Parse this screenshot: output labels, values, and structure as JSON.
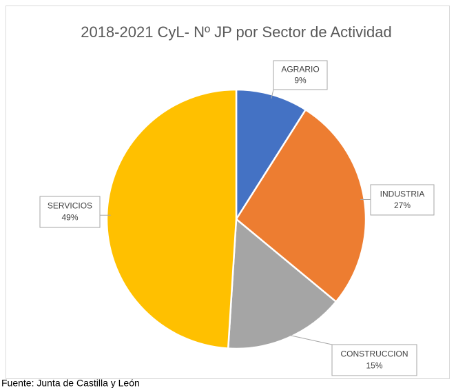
{
  "chart_data": {
    "type": "pie",
    "title": "2018-2021 CyL- Nº JP por Sector de Actividad",
    "categories": [
      "AGRARIO",
      "INDUSTRIA",
      "CONSTRUCCION",
      "SERVICIOS"
    ],
    "values": [
      9,
      27,
      15,
      49
    ],
    "value_labels": [
      "9%",
      "27%",
      "15%",
      "49%"
    ],
    "colors": [
      "#4472c4",
      "#ed7d31",
      "#a5a5a5",
      "#ffc000"
    ],
    "source": "Fuente: Junta de Castilla y León"
  }
}
